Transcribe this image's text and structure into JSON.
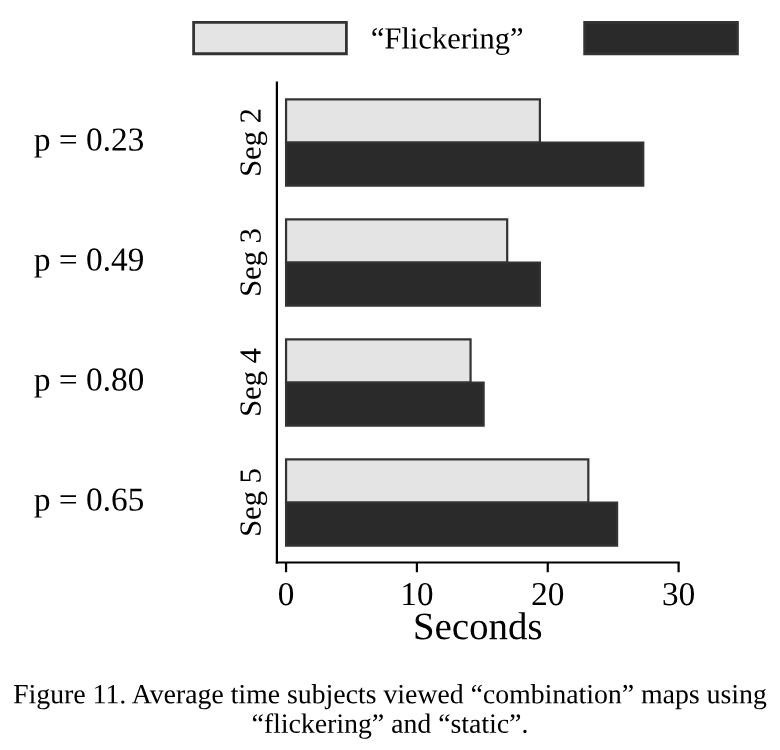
{
  "chart_data": {
    "type": "bar",
    "orientation": "horizontal",
    "categories": [
      "Seg 2",
      "Seg 3",
      "Seg 4",
      "Seg 5"
    ],
    "series": [
      {
        "name": "“Flickering”",
        "color": "#e4e4e4",
        "values": [
          19.4,
          16.9,
          14.1,
          23.1
        ]
      },
      {
        "color": "#2a2a2a",
        "values": [
          27.3,
          19.4,
          15.1,
          25.3
        ]
      }
    ],
    "xlabel": "Seconds",
    "xlim": [
      -0.7,
      30
    ],
    "xticks": [
      0,
      10,
      20,
      30
    ],
    "grid": false,
    "legend": "top",
    "annotations": [
      "p = 0.23",
      "p = 0.49",
      "p = 0.80",
      "p = 0.65",
      "Figure 11. Average time subjects viewed “combination” maps using “flickering” and “static”."
    ]
  }
}
